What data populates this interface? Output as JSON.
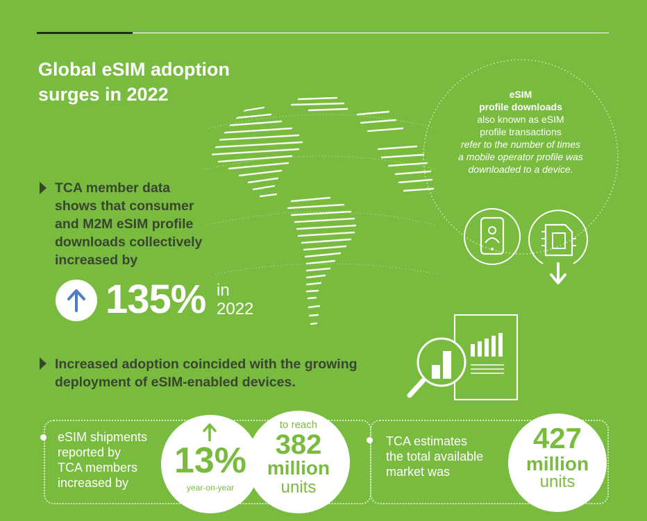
{
  "title": {
    "line1": "Global eSIM adoption",
    "line2": "surges in 2022"
  },
  "bullet1": {
    "lines": [
      "TCA member data",
      "shows that consumer",
      "and M2M eSIM profile",
      "downloads collectively",
      "increased by"
    ]
  },
  "growth": {
    "value": "135%",
    "in": "in",
    "year": "2022"
  },
  "definition": {
    "term_line1": "eSIM",
    "term_line2": "profile downloads",
    "aka_line1": "also known as eSIM",
    "aka_line2": "profile transactions",
    "desc_line1": "refer to the number of times",
    "desc_line2": "a mobile operator profile was",
    "desc_line3": "downloaded to a device."
  },
  "bullet2": {
    "line1": "Increased adoption coincided with the growing",
    "line2": "deployment of eSIM-enabled devices."
  },
  "shipments": {
    "lines": [
      "eSIM shipments",
      "reported by",
      "TCA members",
      "increased by"
    ],
    "pct": "13%",
    "pct_caption": "year-on-year",
    "reach_label": "to reach",
    "reach_value": "382",
    "reach_unit1": "million",
    "reach_unit2": "units"
  },
  "market": {
    "lines": [
      "TCA estimates",
      "the total available",
      "market was"
    ],
    "value": "427",
    "unit1": "million",
    "unit2": "units"
  },
  "icons": [
    "phone-person-icon",
    "sim-download-icon",
    "magnifier-chart-icon",
    "up-arrow-icon",
    "globe-illustration"
  ],
  "colors": {
    "background": "#78bb3f",
    "dark_text": "#38452f",
    "white": "#ffffff"
  }
}
